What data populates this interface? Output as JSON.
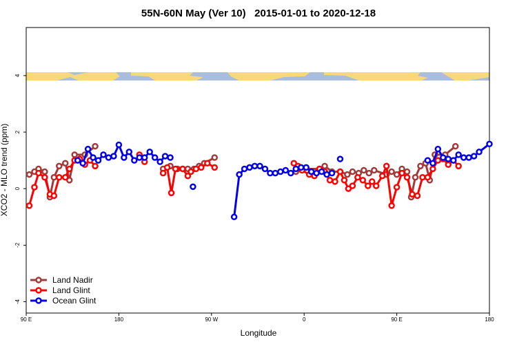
{
  "chart_data": {
    "type": "line",
    "title": "55N-60N May (Ver 10)   2015-01-01 to 2020-12-18",
    "x_label": "Longitude",
    "y_label": "XCO2 - MLO trend (ppm)",
    "xlim": [
      90,
      540
    ],
    "ylim": [
      -4.4,
      5.7
    ],
    "xticks": [
      {
        "value": 90,
        "label": "90 E"
      },
      180,
      {
        "value": 270,
        "label": "90 W"
      },
      {
        "value": 360,
        "label": "0"
      },
      {
        "value": 450,
        "label": "90 E"
      },
      {
        "value": 540,
        "label": "180"
      }
    ],
    "yticks": [
      -4,
      -2,
      0,
      2,
      4
    ],
    "legend": "bottom-left",
    "series": [
      {
        "name": "Land Nadir",
        "color": "#a33a3a",
        "x": [
          93,
          98,
          102,
          108,
          113,
          117,
          122,
          128,
          132,
          137,
          147,
          157,
          null,
          223,
          230,
          237,
          242,
          247,
          253,
          258,
          263,
          273,
          null,
          352,
          358,
          375,
          380,
          387,
          395,
          402,
          407,
          413,
          418,
          423,
          428,
          440,
          445,
          450,
          455,
          460,
          464,
          468,
          473,
          478,
          482,
          487,
          497,
          507
        ],
        "values": [
          0.5,
          0.6,
          0.7,
          0.6,
          -0.3,
          0.4,
          0.8,
          0.9,
          0.3,
          1.2,
          1.2,
          1.5,
          null,
          0.7,
          0.8,
          0.7,
          0.7,
          0.7,
          0.7,
          0.8,
          0.9,
          1.1,
          null,
          0.6,
          0.7,
          0.7,
          0.8,
          0.6,
          0.6,
          0.5,
          0.6,
          0.55,
          0.65,
          0.55,
          0.65,
          0.5,
          0.6,
          0.5,
          0.7,
          0.6,
          -0.3,
          0.4,
          0.8,
          0.9,
          0.3,
          1.2,
          1.2,
          1.5
        ]
      },
      {
        "name": "Land Glint",
        "color": "#ff0000",
        "x": [
          93,
          98,
          102,
          108,
          113,
          117,
          122,
          128,
          132,
          137,
          142,
          147,
          152,
          157,
          null,
          200,
          205,
          null,
          223,
          227,
          231,
          235,
          242,
          247,
          250,
          255,
          260,
          266,
          273,
          null,
          350,
          354,
          358,
          365,
          370,
          375,
          380,
          385,
          390,
          395,
          399,
          403,
          407,
          412,
          417,
          422,
          426,
          430,
          436,
          440,
          445,
          450,
          455,
          460,
          465,
          470,
          475,
          480,
          485,
          490,
          495,
          500,
          505,
          510
        ],
        "values": [
          -0.6,
          0.05,
          0.55,
          0.4,
          -0.2,
          -0.25,
          0.4,
          0.4,
          0.7,
          1.0,
          1.05,
          0.85,
          1.0,
          0.8,
          null,
          1.2,
          0.95,
          null,
          0.55,
          0.75,
          -0.15,
          0.7,
          0.7,
          0.45,
          0.6,
          0.7,
          0.75,
          0.9,
          0.75,
          null,
          0.9,
          0.8,
          0.65,
          0.5,
          0.45,
          0.7,
          0.6,
          0.3,
          0.25,
          0.6,
          0.3,
          0.0,
          0.1,
          0.4,
          0.3,
          0.1,
          0.25,
          0.1,
          0.45,
          0.8,
          -0.6,
          0.05,
          0.55,
          0.4,
          -0.2,
          -0.25,
          0.4,
          0.4,
          0.7,
          1.0,
          1.05,
          0.85,
          1.0,
          0.8
        ]
      },
      {
        "name": "Ocean Glint",
        "color": "#0000ee",
        "x": [
          140,
          145,
          150,
          155,
          160,
          165,
          170,
          175,
          180,
          185,
          190,
          195,
          200,
          205,
          210,
          215,
          220,
          225,
          230,
          null,
          252,
          null,
          292,
          297,
          302,
          307,
          312,
          317,
          322,
          327,
          332,
          337,
          342,
          347,
          352,
          357,
          362,
          367,
          372,
          377,
          382,
          387,
          null,
          395,
          null,
          480,
          485,
          490,
          495,
          500,
          505,
          510,
          515,
          520,
          525,
          530,
          540
        ],
        "values": [
          1.0,
          0.9,
          1.4,
          1.1,
          1.0,
          1.2,
          1.1,
          1.15,
          1.55,
          1.1,
          1.3,
          1.0,
          1.1,
          1.1,
          1.3,
          1.1,
          0.95,
          1.15,
          1.1,
          null,
          0.07,
          null,
          -1.0,
          0.5,
          0.7,
          0.75,
          0.8,
          0.8,
          0.7,
          0.55,
          0.55,
          0.6,
          0.65,
          0.55,
          0.7,
          0.75,
          0.75,
          0.6,
          0.55,
          0.6,
          0.5,
          0.55,
          null,
          1.05,
          null,
          1.0,
          0.9,
          1.4,
          1.1,
          1.05,
          1.0,
          1.2,
          1.1,
          1.1,
          1.15,
          1.3,
          1.58
        ]
      }
    ]
  }
}
